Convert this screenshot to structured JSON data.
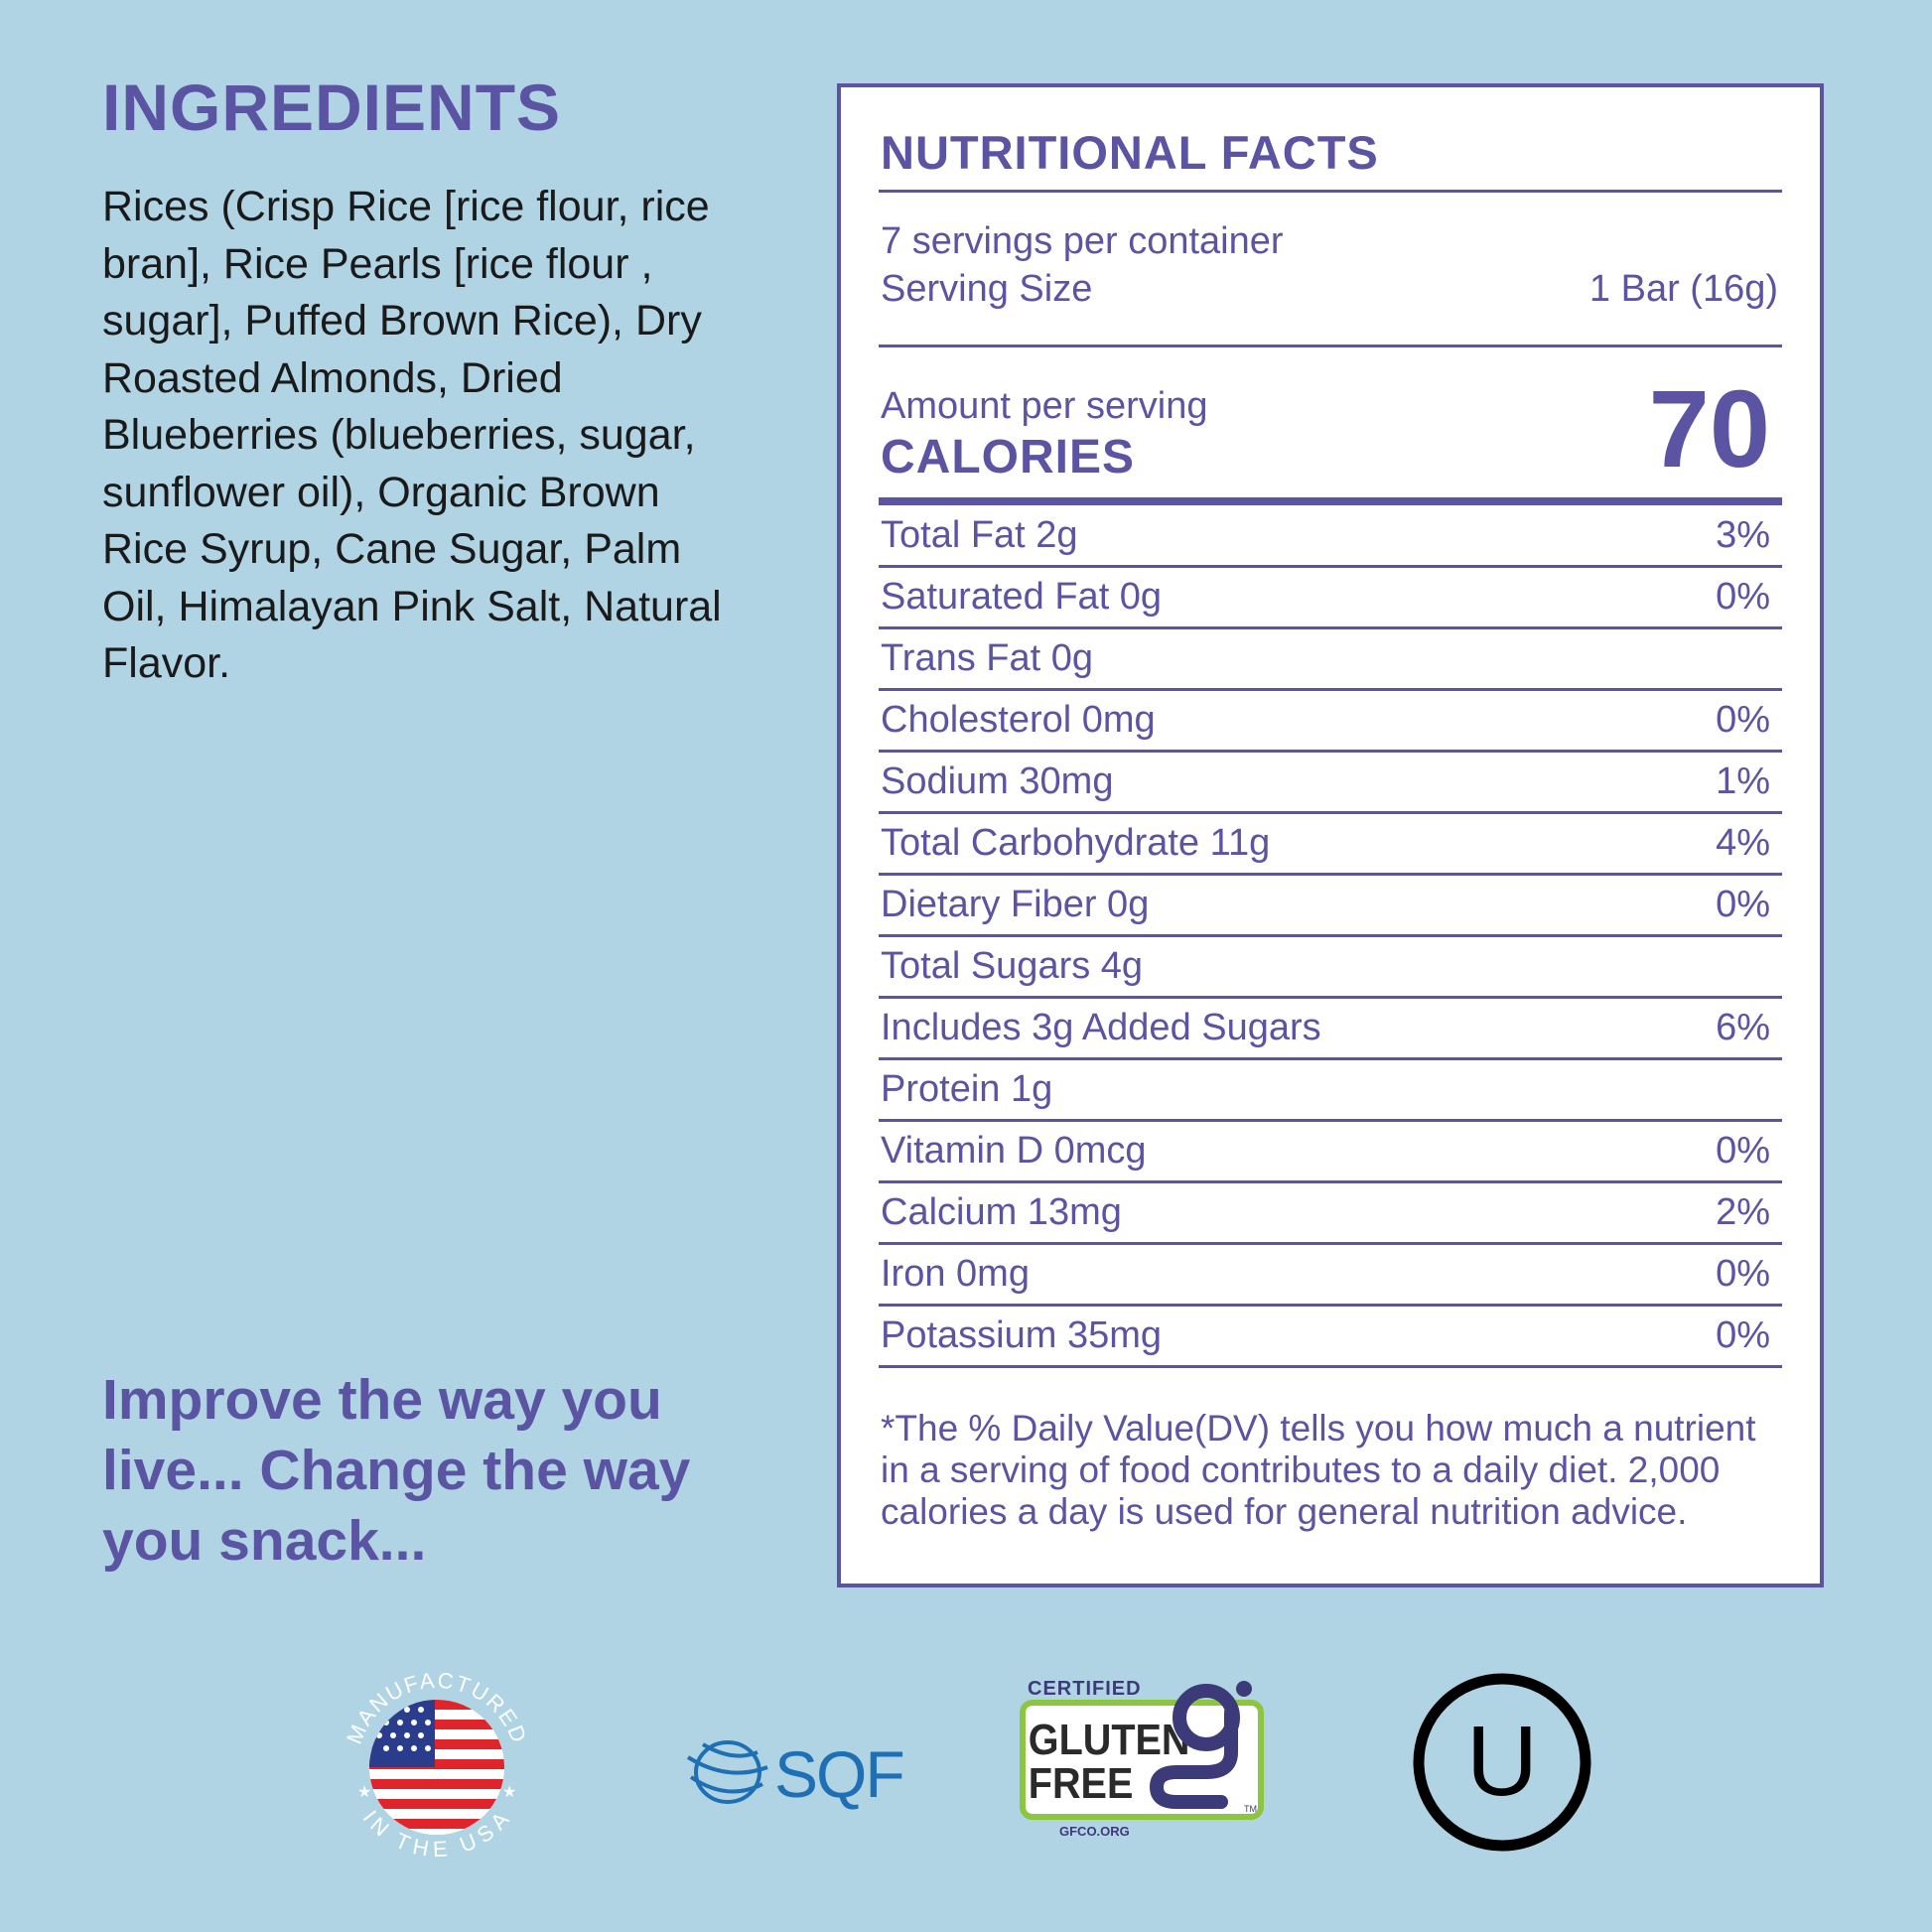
{
  "ingredients": {
    "title": "INGREDIENTS",
    "text": "Rices (Crisp Rice [rice flour, rice bran], Rice Pearls [rice flour , sugar], Puffed Brown Rice), Dry Roasted Almonds, Dried Blueberries (blueberries, sugar, sunflower oil), Organic Brown Rice Syrup, Cane Sugar, Palm Oil, Himalayan Pink Salt, Natural Flavor."
  },
  "tagline": "Improve the way you live... Change the way you snack...",
  "nutrition": {
    "title": "NUTRITIONAL FACTS",
    "servings_per_container": "7 servings per container",
    "serving_size_label": "Serving Size",
    "serving_size_value": "1 Bar (16g)",
    "amount_per_serving": "Amount per serving",
    "calories_label": "CALORIES",
    "calories_value": "70",
    "rows": [
      {
        "label": "Total Fat 2g",
        "dv": "3%"
      },
      {
        "label": "Saturated Fat 0g",
        "dv": "0%"
      },
      {
        "label": "Trans Fat 0g",
        "dv": ""
      },
      {
        "label": "Cholesterol 0mg",
        "dv": "0%"
      },
      {
        "label": "Sodium 30mg",
        "dv": "1%"
      },
      {
        "label": "Total Carbohydrate 11g",
        "dv": "4%"
      },
      {
        "label": "Dietary Fiber 0g",
        "dv": "0%"
      },
      {
        "label": "Total Sugars 4g",
        "dv": ""
      },
      {
        "label": "Includes 3g Added Sugars",
        "dv": "6%"
      },
      {
        "label": "Protein 1g",
        "dv": ""
      },
      {
        "label": "Vitamin D 0mcg",
        "dv": "0%"
      },
      {
        "label": "Calcium 13mg",
        "dv": "2%"
      },
      {
        "label": "Iron 0mg",
        "dv": "0%"
      },
      {
        "label": "Potassium 35mg",
        "dv": "0%"
      }
    ],
    "footnote": "*The % Daily Value(DV) tells you how much a nutrient in a serving of food contributes to a daily diet. 2,000 calories a day is used for general nutrition advice."
  },
  "badges": {
    "usa_top": "MANUFACTURED",
    "usa_bottom": "IN THE USA",
    "sqf": "SQF",
    "gf_certified": "CERTIFIED",
    "gf_gluten": "GLUTEN",
    "gf_free": "FREE",
    "gf_org": "GFCO.ORG",
    "gf_tm": "TM",
    "kosher": "U"
  },
  "colors": {
    "background": "#b0d4e3",
    "accent": "#5b54a3",
    "gf_green": "#8cc63f"
  }
}
